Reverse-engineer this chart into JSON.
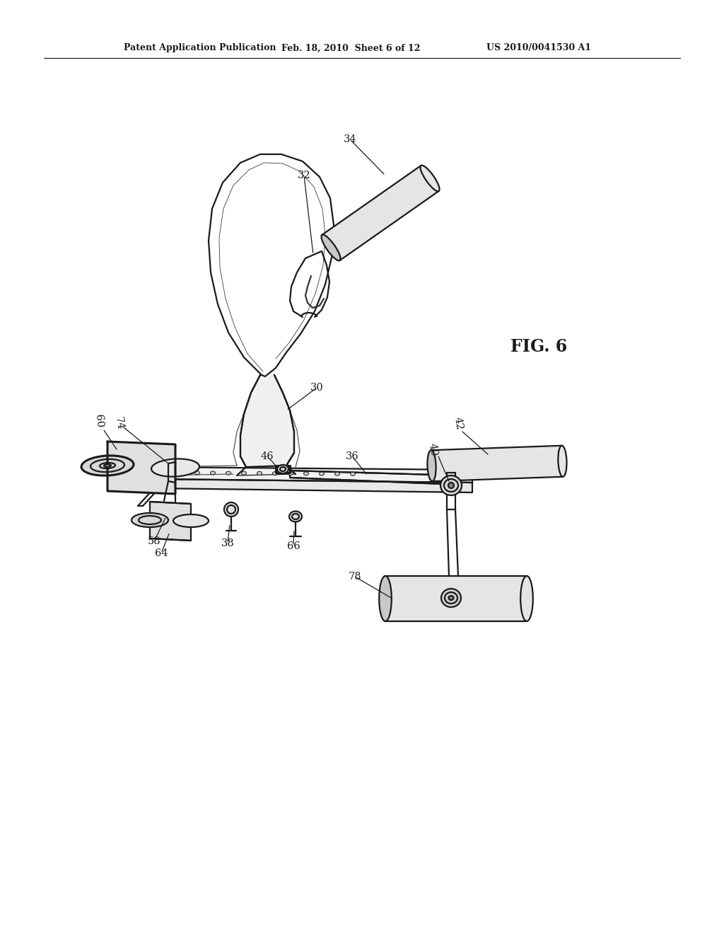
{
  "bg_color": "#ffffff",
  "line_color": "#1a1a1a",
  "header_left": "Patent Application Publication",
  "header_center": "Feb. 18, 2010  Sheet 6 of 12",
  "header_right": "US 2010/0041530 A1",
  "fig_label": "FIG. 6",
  "lw_main": 1.6,
  "lw_thick": 2.2,
  "lw_thin": 0.9
}
